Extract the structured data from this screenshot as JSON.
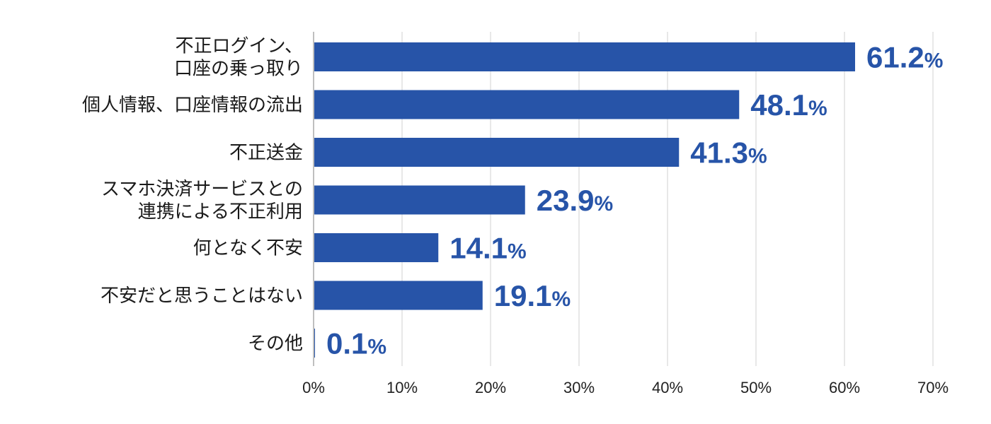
{
  "chart_data": {
    "type": "bar",
    "orientation": "horizontal",
    "categories": [
      [
        "不正ログイン、",
        "口座の乗っ取り"
      ],
      [
        "個人情報、口座情報の流出"
      ],
      [
        "不正送金"
      ],
      [
        "スマホ決済サービスとの",
        "連携による不正利用"
      ],
      [
        "何となく不安"
      ],
      [
        "不安だと思うことはない"
      ],
      [
        "その他"
      ]
    ],
    "values": [
      61.2,
      48.1,
      41.3,
      23.9,
      14.1,
      19.1,
      0.1
    ],
    "value_labels": [
      "61.2",
      "48.1",
      "41.3",
      "23.9",
      "14.1",
      "19.1",
      "0.1"
    ],
    "value_unit": "%",
    "xlim": [
      0,
      70
    ],
    "xticks": [
      0,
      10,
      20,
      30,
      40,
      50,
      60,
      70
    ],
    "xtick_labels": [
      "0%",
      "10%",
      "20%",
      "30%",
      "40%",
      "50%",
      "60%",
      "70%"
    ],
    "grid": true,
    "bar_color": "#2754a8",
    "label_color": "#2754a8"
  }
}
